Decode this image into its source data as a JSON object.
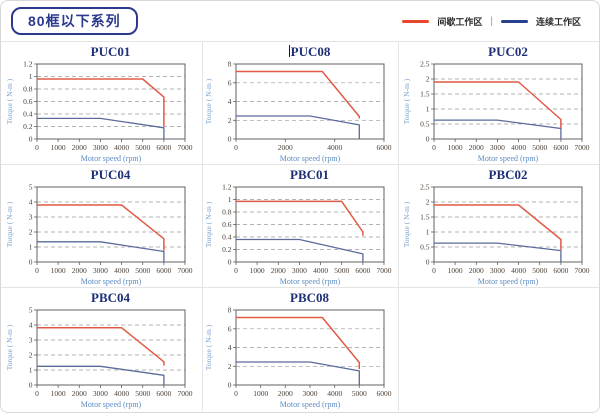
{
  "header": {
    "series_chip": "80框以下系列"
  },
  "legend": {
    "intermittent": "间歇工作区",
    "separator": "|",
    "continuous": "连续工作区"
  },
  "colors": {
    "intermittent_red": "#e8472b",
    "continuous_navy": "#27418e",
    "curve_red": "#e05a46",
    "curve_blue": "#5a6b9c",
    "title_navy": "#1e2f77",
    "axis_label_blue": "#5b8cc4",
    "tick_text": "#4c4036"
  },
  "chart_data": [
    {
      "type": "line",
      "title": "PUC01",
      "xlabel": "Motor speed (rpm)",
      "ylabel": "Torque ( N-m )",
      "xlim": [
        0,
        7000
      ],
      "xticks": [
        0,
        1000,
        2000,
        3000,
        4000,
        5000,
        6000,
        7000
      ],
      "ylim": [
        0,
        1.2
      ],
      "yticks": [
        0,
        0.2,
        0.4,
        0.6,
        0.8,
        1,
        1.2
      ],
      "grid": "dashed-horizontal",
      "legend_position": "page-top-right",
      "series": [
        {
          "key": "intermittent",
          "name": "间歇工作区",
          "color": "curve_red",
          "points": [
            [
              0,
              0.96
            ],
            [
              5000,
              0.96
            ],
            [
              6000,
              0.67
            ],
            [
              6000,
              0.2
            ]
          ]
        },
        {
          "key": "continuous",
          "name": "连续工作区",
          "color": "curve_blue",
          "points": [
            [
              0,
              0.33
            ],
            [
              3000,
              0.33
            ],
            [
              6000,
              0.18
            ],
            [
              6000,
              0
            ]
          ]
        }
      ]
    },
    {
      "type": "line",
      "title": "PUC08",
      "title_cursor_artifact": true,
      "xlabel": "Motor speed (rpm)",
      "ylabel": "Torque ( N-m )",
      "xlim": [
        0,
        6000
      ],
      "xticks": [
        0,
        2000,
        4000,
        6000
      ],
      "ylim": [
        0,
        8
      ],
      "yticks": [
        0,
        2,
        4,
        6,
        8
      ],
      "grid": "dashed-horizontal",
      "legend_position": "page-top-right",
      "series": [
        {
          "key": "intermittent",
          "name": "间歇工作区",
          "color": "curve_red",
          "points": [
            [
              0,
              7.2
            ],
            [
              3500,
              7.2
            ],
            [
              5000,
              2.4
            ],
            [
              5000,
              2.2
            ]
          ]
        },
        {
          "key": "continuous",
          "name": "连续工作区",
          "color": "curve_blue",
          "points": [
            [
              0,
              2.45
            ],
            [
              3000,
              2.45
            ],
            [
              5000,
              1.5
            ],
            [
              5000,
              0
            ]
          ]
        }
      ]
    },
    {
      "type": "line",
      "title": "PUC02",
      "xlabel": "Motor speed (rpm)",
      "ylabel": "Torque ( N-m )",
      "xlim": [
        0,
        7000
      ],
      "xticks": [
        0,
        1000,
        2000,
        3000,
        4000,
        5000,
        6000,
        7000
      ],
      "ylim": [
        0,
        2.5
      ],
      "yticks": [
        0,
        0.5,
        1,
        1.5,
        2,
        2.5
      ],
      "grid": "dashed-horizontal",
      "legend_position": "page-top-right",
      "series": [
        {
          "key": "intermittent",
          "name": "间歇工作区",
          "color": "curve_red",
          "points": [
            [
              0,
              1.9
            ],
            [
              4000,
              1.9
            ],
            [
              6000,
              0.65
            ],
            [
              6000,
              0.35
            ]
          ]
        },
        {
          "key": "continuous",
          "name": "连续工作区",
          "color": "curve_blue",
          "points": [
            [
              0,
              0.63
            ],
            [
              3000,
              0.63
            ],
            [
              6000,
              0.35
            ],
            [
              6000,
              0
            ]
          ]
        }
      ]
    },
    {
      "type": "line",
      "title": "PUC04",
      "xlabel": "Motor speed (rpm)",
      "ylabel": "Torque ( N-m )",
      "xlim": [
        0,
        7000
      ],
      "xticks": [
        0,
        1000,
        2000,
        3000,
        4000,
        5000,
        6000,
        7000
      ],
      "ylim": [
        0,
        5
      ],
      "yticks": [
        0,
        1,
        2,
        3,
        4,
        5
      ],
      "grid": "dashed-horizontal",
      "legend_position": "page-top-right",
      "series": [
        {
          "key": "intermittent",
          "name": "间歇工作区",
          "color": "curve_red",
          "points": [
            [
              0,
              3.8
            ],
            [
              4000,
              3.8
            ],
            [
              6000,
              1.55
            ],
            [
              6000,
              0.75
            ]
          ]
        },
        {
          "key": "continuous",
          "name": "连续工作区",
          "color": "curve_blue",
          "points": [
            [
              0,
              1.35
            ],
            [
              3000,
              1.35
            ],
            [
              6000,
              0.7
            ],
            [
              6000,
              0
            ]
          ]
        }
      ]
    },
    {
      "type": "line",
      "title": "PBC01",
      "xlabel": "Motor speed (rpm)",
      "ylabel": "Torque ( N-m )",
      "xlim": [
        0,
        7000
      ],
      "xticks": [
        0,
        1000,
        2000,
        3000,
        4000,
        5000,
        6000,
        7000
      ],
      "ylim": [
        0,
        1.2
      ],
      "yticks": [
        0,
        0.2,
        0.4,
        0.6,
        0.8,
        1,
        1.2
      ],
      "grid": "dashed-horizontal",
      "legend_position": "page-top-right",
      "series": [
        {
          "key": "intermittent",
          "name": "间歇工作区",
          "color": "curve_red",
          "points": [
            [
              0,
              0.97
            ],
            [
              5000,
              0.97
            ],
            [
              6000,
              0.48
            ],
            [
              6000,
              0.42
            ]
          ]
        },
        {
          "key": "continuous",
          "name": "连续工作区",
          "color": "curve_blue",
          "points": [
            [
              0,
              0.36
            ],
            [
              3000,
              0.36
            ],
            [
              6000,
              0.13
            ],
            [
              6000,
              0
            ]
          ]
        }
      ]
    },
    {
      "type": "line",
      "title": "PBC02",
      "xlabel": "Motor speed (rpm)",
      "ylabel": "Torque ( N-m )",
      "xlim": [
        0,
        7000
      ],
      "xticks": [
        0,
        1000,
        2000,
        3000,
        4000,
        5000,
        6000,
        7000
      ],
      "ylim": [
        0,
        2.5
      ],
      "yticks": [
        0,
        0.5,
        1,
        1.5,
        2,
        2.5
      ],
      "grid": "dashed-horizontal",
      "legend_position": "page-top-right",
      "series": [
        {
          "key": "intermittent",
          "name": "间歇工作区",
          "color": "curve_red",
          "points": [
            [
              0,
              1.9
            ],
            [
              4000,
              1.9
            ],
            [
              6000,
              0.75
            ],
            [
              6000,
              0.4
            ]
          ]
        },
        {
          "key": "continuous",
          "name": "连续工作区",
          "color": "curve_blue",
          "points": [
            [
              0,
              0.63
            ],
            [
              3000,
              0.63
            ],
            [
              6000,
              0.38
            ],
            [
              6000,
              0
            ]
          ]
        }
      ]
    },
    {
      "type": "line",
      "title": "PBC04",
      "xlabel": "Motor speed (rpm)",
      "ylabel": "Torque ( N-m )",
      "xlim": [
        0,
        7000
      ],
      "xticks": [
        0,
        1000,
        2000,
        3000,
        4000,
        5000,
        6000,
        7000
      ],
      "ylim": [
        0,
        5
      ],
      "yticks": [
        0,
        1,
        2,
        3,
        4,
        5
      ],
      "grid": "dashed-horizontal",
      "legend_position": "page-top-right",
      "series": [
        {
          "key": "intermittent",
          "name": "间歇工作区",
          "color": "curve_red",
          "points": [
            [
              0,
              3.82
            ],
            [
              4000,
              3.82
            ],
            [
              6000,
              1.55
            ],
            [
              6000,
              1.3
            ]
          ]
        },
        {
          "key": "continuous",
          "name": "连续工作区",
          "color": "curve_blue",
          "points": [
            [
              0,
              1.25
            ],
            [
              3000,
              1.25
            ],
            [
              6000,
              0.65
            ],
            [
              6000,
              0
            ]
          ]
        }
      ]
    },
    {
      "type": "line",
      "title": "PBC08",
      "xlabel": "Motor speed (rpm)",
      "ylabel": "Torque ( N-m )",
      "xlim": [
        0,
        6000
      ],
      "xticks": [
        0,
        1000,
        2000,
        3000,
        4000,
        5000,
        6000
      ],
      "ylim": [
        0,
        8
      ],
      "yticks": [
        0,
        2,
        4,
        6,
        8
      ],
      "grid": "dashed-horizontal",
      "legend_position": "page-top-right",
      "series": [
        {
          "key": "intermittent",
          "name": "间歇工作区",
          "color": "curve_red",
          "points": [
            [
              0,
              7.2
            ],
            [
              3500,
              7.2
            ],
            [
              5000,
              2.4
            ],
            [
              5000,
              1.7
            ]
          ]
        },
        {
          "key": "continuous",
          "name": "连续工作区",
          "color": "curve_blue",
          "points": [
            [
              0,
              2.45
            ],
            [
              3000,
              2.45
            ],
            [
              5000,
              1.5
            ],
            [
              5000,
              0
            ]
          ]
        }
      ]
    }
  ]
}
